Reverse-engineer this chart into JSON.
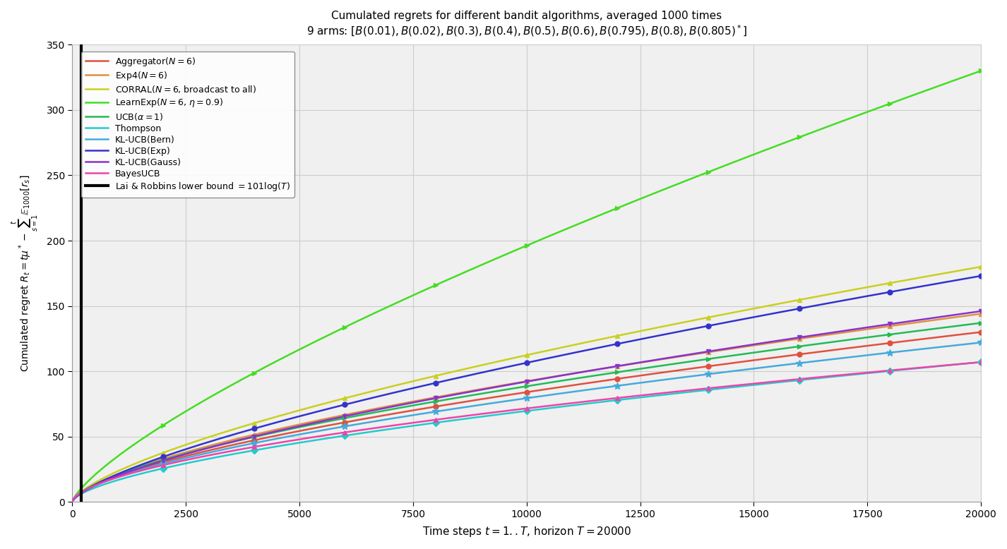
{
  "title_line1": "Cumulated regrets for different bandit algorithms, averaged 1000 times",
  "title_line2": "9 arms: $[B(0.01), B(0.02), B(0.3), B(0.4), B(0.5), B(0.6), B(0.795), B(0.8), B(0.805)^*]$",
  "xlabel": "Time steps $t = 1..T$, horizon $T = 20000$",
  "ylabel": "Cumulated regret $R_t = t\\mu^* - \\sum_{s=1}^{t}\\mathbb{E}_{1000}[r_s]$",
  "T": 20000,
  "lower_bound_label": "Lai & Robbins lower bound $= 101 \\log(T)$",
  "curves": [
    {
      "label": "Aggregator$(N=6)$",
      "color": "#e05040",
      "marker": "o",
      "marker_size": 5,
      "end_value": 130,
      "shape": 0.63
    },
    {
      "label": "Exp4$(N=6)$",
      "color": "#e09040",
      "marker": "^",
      "marker_size": 5,
      "end_value": 144,
      "shape": 0.64
    },
    {
      "label": "CORRAL$(N=6$, broadcast to all$)$",
      "color": "#c8d020",
      "marker": "^",
      "marker_size": 5,
      "end_value": 180,
      "shape": 0.68
    },
    {
      "label": "LearnExp$(N=6$, $\\eta=0.9)$",
      "color": "#44dd22",
      "marker": ">",
      "marker_size": 5,
      "end_value": 330,
      "shape": 0.58
    },
    {
      "label": "UCB$(\\alpha=1)$",
      "color": "#22bb55",
      "marker": ">",
      "marker_size": 5,
      "end_value": 137,
      "shape": 0.63
    },
    {
      "label": "Thompson",
      "color": "#22cccc",
      "marker": "D",
      "marker_size": 5,
      "end_value": 107,
      "shape": 0.62
    },
    {
      "label": "KL-UCB(Bern)",
      "color": "#44aadd",
      "marker": "*",
      "marker_size": 7,
      "end_value": 122,
      "shape": 0.62
    },
    {
      "label": "KL-UCB(Exp)",
      "color": "#3333cc",
      "marker": "o",
      "marker_size": 5,
      "end_value": 173,
      "shape": 0.7
    },
    {
      "label": "KL-UCB(Gauss)",
      "color": "#8833cc",
      "marker": "v",
      "marker_size": 5,
      "end_value": 146,
      "shape": 0.665
    },
    {
      "label": "BayesUCB",
      "color": "#ee44aa",
      "marker": "^",
      "marker_size": 5,
      "end_value": 107,
      "shape": 0.58
    }
  ],
  "background_color": "#f0f0f0",
  "grid_color": "#cccccc",
  "ylim": [
    0,
    350
  ],
  "xlim": [
    0,
    20000
  ],
  "yticks": [
    0,
    50,
    100,
    150,
    200,
    250,
    300,
    350
  ],
  "xticks": [
    0,
    2500,
    5000,
    7500,
    10000,
    12500,
    15000,
    17500,
    20000
  ],
  "marker_interval": 2000,
  "figsize": [
    14.26,
    7.78
  ],
  "dpi": 100,
  "vline_x": 200
}
